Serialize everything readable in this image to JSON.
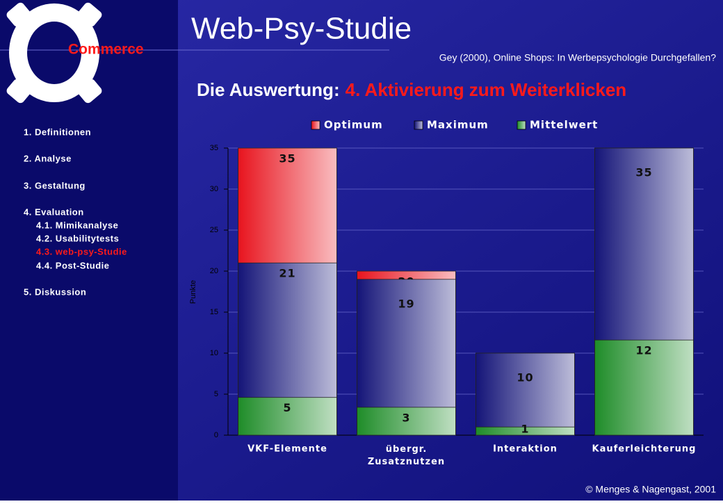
{
  "slide": {
    "logo_text": "Commerce",
    "title": "Web-Psy-Studie",
    "source": "Gey (2000), Online Shops: In Werbepsychologie Durchgefallen?",
    "heading_prefix": "Die Auswertung:",
    "heading_highlight": "4. Aktivierung zum Weiterklicken",
    "nav": [
      "1. Definitionen",
      "2. Analyse",
      "3. Gestaltung",
      "4. Evaluation",
      "4.1. Mimikanalyse",
      "4.2. Usabilitytests",
      "4.3. web-psy-Studie",
      "4.4. Post-Studie",
      "5. Diskussion"
    ],
    "footer": "© Menges & Nagengast, 2001"
  },
  "chart_data": {
    "type": "bar",
    "barmode": "overlay",
    "ylabel": "Punkte",
    "categories": [
      "VKF-Elemente",
      "übergr. Zusatznutzen",
      "Interaktion",
      "Kauferleichterung"
    ],
    "series": [
      {
        "name": "Optimum",
        "color": "#e8141e",
        "values": [
          35,
          20,
          10,
          35
        ]
      },
      {
        "name": "Maximum",
        "color": "#141478",
        "values": [
          21,
          19,
          10,
          35
        ]
      },
      {
        "name": "Mittelwert",
        "color": "#1e8c28",
        "values": [
          4.6,
          3.4,
          1,
          11.6
        ],
        "value_labels": [
          "5",
          "3",
          "1",
          "12"
        ]
      }
    ],
    "ylim": [
      0,
      35
    ],
    "yticks": [
      0,
      5,
      10,
      15,
      20,
      25,
      30,
      35
    ],
    "grid": true,
    "legend": "top"
  }
}
